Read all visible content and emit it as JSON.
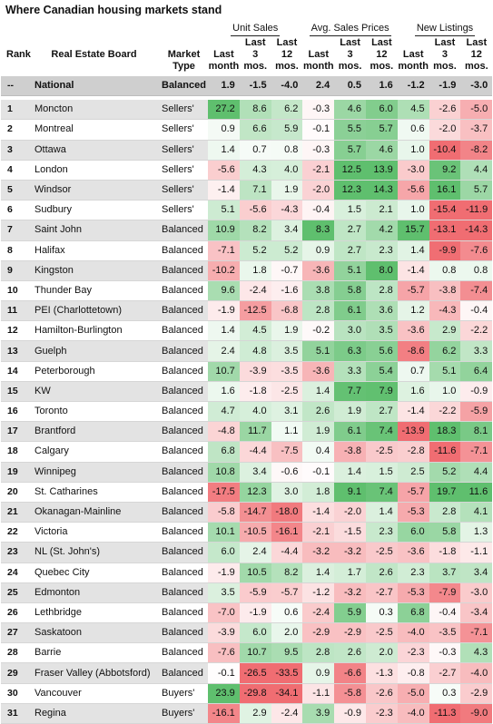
{
  "title": "Where Canadian housing markets stand",
  "headers": {
    "rank": "Rank",
    "board": "Real Estate Board",
    "type_line1": "Market",
    "type_line2": "Type",
    "groups": [
      "Unit Sales",
      "Avg. Sales Prices",
      "New Listings"
    ],
    "sub": [
      [
        "Last",
        "month"
      ],
      [
        "Last",
        "3",
        "mos."
      ],
      [
        "Last",
        "12",
        "mos."
      ]
    ]
  },
  "national": {
    "rank": "--",
    "board": "National",
    "type": "Balanced",
    "values": [
      "1.9",
      "-1.5",
      "-4.0",
      "2.4",
      "0.5",
      "1.6",
      "-1.2",
      "-1.9",
      "-3.0"
    ]
  },
  "rows": [
    {
      "rank": "1",
      "board": "Moncton",
      "type": "Sellers'",
      "values": [
        "27.2",
        "8.6",
        "6.2",
        "-0.3",
        "4.6",
        "6.0",
        "4.5",
        "-2.6",
        "-5.0"
      ]
    },
    {
      "rank": "2",
      "board": "Montreal",
      "type": "Sellers'",
      "values": [
        "0.9",
        "6.6",
        "5.9",
        "-0.1",
        "5.5",
        "5.7",
        "0.6",
        "-2.0",
        "-3.7"
      ]
    },
    {
      "rank": "3",
      "board": "Ottawa",
      "type": "Sellers'",
      "values": [
        "1.4",
        "0.7",
        "0.8",
        "-0.3",
        "5.7",
        "4.6",
        "1.0",
        "-10.4",
        "-8.2"
      ]
    },
    {
      "rank": "4",
      "board": "London",
      "type": "Sellers'",
      "values": [
        "-5.6",
        "4.3",
        "4.0",
        "-2.1",
        "12.5",
        "13.9",
        "-3.0",
        "9.2",
        "4.4"
      ]
    },
    {
      "rank": "5",
      "board": "Windsor",
      "type": "Sellers'",
      "values": [
        "-1.4",
        "7.1",
        "1.9",
        "-2.0",
        "12.3",
        "14.3",
        "-5.6",
        "16.1",
        "5.7"
      ]
    },
    {
      "rank": "6",
      "board": "Sudbury",
      "type": "Sellers'",
      "values": [
        "5.1",
        "-5.6",
        "-4.3",
        "-0.4",
        "1.5",
        "2.1",
        "1.0",
        "-15.4",
        "-11.9"
      ]
    },
    {
      "rank": "7",
      "board": "Saint John",
      "type": "Balanced",
      "values": [
        "10.9",
        "8.2",
        "3.4",
        "8.3",
        "2.7",
        "4.2",
        "15.7",
        "-13.1",
        "-14.3"
      ]
    },
    {
      "rank": "8",
      "board": "Halifax",
      "type": "Balanced",
      "values": [
        "-7.1",
        "5.2",
        "5.2",
        "0.9",
        "2.7",
        "2.3",
        "1.4",
        "-9.9",
        "-7.6"
      ]
    },
    {
      "rank": "9",
      "board": "Kingston",
      "type": "Balanced",
      "values": [
        "-10.2",
        "1.8",
        "-0.7",
        "-3.6",
        "5.1",
        "8.0",
        "-1.4",
        "0.8",
        "0.8"
      ]
    },
    {
      "rank": "10",
      "board": "Thunder Bay",
      "type": "Balanced",
      "values": [
        "9.6",
        "-2.4",
        "-1.6",
        "3.8",
        "5.8",
        "2.8",
        "-5.7",
        "-3.8",
        "-7.4"
      ]
    },
    {
      "rank": "11",
      "board": "PEI (Charlottetown)",
      "type": "Balanced",
      "values": [
        "-1.9",
        "-12.5",
        "-6.8",
        "2.8",
        "6.1",
        "3.6",
        "1.2",
        "-4.3",
        "-0.4"
      ]
    },
    {
      "rank": "12",
      "board": "Hamilton-Burlington",
      "type": "Balanced",
      "values": [
        "1.4",
        "4.5",
        "1.9",
        "-0.2",
        "3.0",
        "3.5",
        "-3.6",
        "2.9",
        "-2.2"
      ]
    },
    {
      "rank": "13",
      "board": "Guelph",
      "type": "Balanced",
      "values": [
        "2.4",
        "4.8",
        "3.5",
        "5.1",
        "6.3",
        "5.6",
        "-8.6",
        "6.2",
        "3.3"
      ]
    },
    {
      "rank": "14",
      "board": "Peterborough",
      "type": "Balanced",
      "values": [
        "10.7",
        "-3.9",
        "-3.5",
        "-3.6",
        "3.3",
        "5.4",
        "0.7",
        "5.1",
        "6.4"
      ]
    },
    {
      "rank": "15",
      "board": "KW",
      "type": "Balanced",
      "values": [
        "1.6",
        "-1.8",
        "-2.5",
        "1.4",
        "7.7",
        "7.9",
        "1.6",
        "1.0",
        "-0.9"
      ]
    },
    {
      "rank": "16",
      "board": "Toronto",
      "type": "Balanced",
      "values": [
        "4.7",
        "4.0",
        "3.1",
        "2.6",
        "1.9",
        "2.7",
        "-1.4",
        "-2.2",
        "-5.9"
      ]
    },
    {
      "rank": "17",
      "board": "Brantford",
      "type": "Balanced",
      "values": [
        "-4.8",
        "11.7",
        "1.1",
        "1.9",
        "6.1",
        "7.4",
        "-13.9",
        "18.3",
        "8.1"
      ]
    },
    {
      "rank": "18",
      "board": "Calgary",
      "type": "Balanced",
      "values": [
        "6.8",
        "-4.4",
        "-7.5",
        "0.4",
        "-3.8",
        "-2.5",
        "-2.8",
        "-11.6",
        "-7.1"
      ]
    },
    {
      "rank": "19",
      "board": "Winnipeg",
      "type": "Balanced",
      "values": [
        "10.8",
        "3.4",
        "-0.6",
        "-0.1",
        "1.4",
        "1.5",
        "2.5",
        "5.2",
        "4.4"
      ]
    },
    {
      "rank": "20",
      "board": "St. Catharines",
      "type": "Balanced",
      "values": [
        "-17.5",
        "12.3",
        "3.0",
        "1.8",
        "9.1",
        "7.4",
        "-5.7",
        "19.7",
        "11.6"
      ]
    },
    {
      "rank": "21",
      "board": "Okanagan-Mainline",
      "type": "Balanced",
      "values": [
        "-5.8",
        "-14.7",
        "-18.0",
        "-1.4",
        "-2.0",
        "1.4",
        "-5.3",
        "2.8",
        "4.1"
      ]
    },
    {
      "rank": "22",
      "board": "Victoria",
      "type": "Balanced",
      "values": [
        "10.1",
        "-10.5",
        "-16.1",
        "-2.1",
        "-1.5",
        "2.3",
        "6.0",
        "5.8",
        "1.3"
      ]
    },
    {
      "rank": "23",
      "board": "NL (St. John's)",
      "type": "Balanced",
      "values": [
        "6.0",
        "2.4",
        "-4.4",
        "-3.2",
        "-3.2",
        "-2.5",
        "-3.6",
        "-1.8",
        "-1.1"
      ]
    },
    {
      "rank": "24",
      "board": "Quebec City",
      "type": "Balanced",
      "values": [
        "-1.9",
        "10.5",
        "8.2",
        "1.4",
        "1.7",
        "2.6",
        "2.3",
        "3.7",
        "3.4"
      ]
    },
    {
      "rank": "25",
      "board": "Edmonton",
      "type": "Balanced",
      "values": [
        "3.5",
        "-5.9",
        "-5.7",
        "-1.2",
        "-3.2",
        "-2.7",
        "-5.3",
        "-7.9",
        "-3.0"
      ]
    },
    {
      "rank": "26",
      "board": "Lethbridge",
      "type": "Balanced",
      "values": [
        "-7.0",
        "-1.9",
        "0.6",
        "-2.4",
        "5.9",
        "0.3",
        "6.8",
        "-0.4",
        "-3.4"
      ]
    },
    {
      "rank": "27",
      "board": "Saskatoon",
      "type": "Balanced",
      "values": [
        "-3.9",
        "6.0",
        "2.0",
        "-2.9",
        "-2.9",
        "-2.5",
        "-4.0",
        "-3.5",
        "-7.1"
      ]
    },
    {
      "rank": "28",
      "board": "Barrie",
      "type": "Balanced",
      "values": [
        "-7.6",
        "10.7",
        "9.5",
        "2.8",
        "2.6",
        "2.0",
        "-2.3",
        "-0.3",
        "4.3"
      ]
    },
    {
      "rank": "29",
      "board": "Fraser Valley (Abbotsford)",
      "type": "Balanced",
      "values": [
        "-0.1",
        "-26.5",
        "-33.5",
        "0.9",
        "-6.6",
        "-1.3",
        "-0.8",
        "-2.7",
        "-4.0"
      ]
    },
    {
      "rank": "30",
      "board": "Vancouver",
      "type": "Buyers'",
      "values": [
        "23.9",
        "-29.8",
        "-34.1",
        "-1.1",
        "-5.8",
        "-2.6",
        "-5.0",
        "0.3",
        "-2.9"
      ]
    },
    {
      "rank": "31",
      "board": "Regina",
      "type": "Buyers'",
      "values": [
        "-16.1",
        "2.9",
        "-2.4",
        "3.9",
        "-0.9",
        "-2.3",
        "-4.0",
        "-11.3",
        "-9.0"
      ]
    }
  ],
  "colors": {
    "positive_strong": "#5fbf6e",
    "negative_strong": "#f06d72",
    "neutral": "#ffffff",
    "row_band": "#e3e3e3",
    "national_band": "#cfcfcf"
  }
}
